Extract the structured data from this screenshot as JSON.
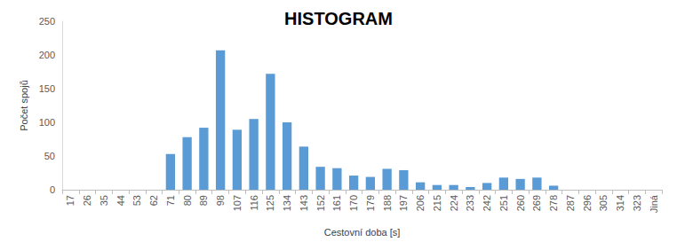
{
  "chart_data": {
    "type": "bar",
    "title": "HISTOGRAM",
    "x_label": "Cestovní doba [s]",
    "y_label": "Počet spojů",
    "categories": [
      "17",
      "26",
      "35",
      "44",
      "53",
      "62",
      "71",
      "80",
      "89",
      "98",
      "107",
      "116",
      "125",
      "134",
      "143",
      "152",
      "161",
      "170",
      "179",
      "188",
      "197",
      "206",
      "215",
      "224",
      "233",
      "242",
      "251",
      "260",
      "269",
      "278",
      "287",
      "296",
      "305",
      "314",
      "323",
      "Jiná"
    ],
    "values": [
      0,
      0,
      0,
      0,
      0,
      0,
      53,
      78,
      92,
      207,
      89,
      105,
      172,
      100,
      64,
      34,
      32,
      21,
      19,
      31,
      29,
      11,
      7,
      7,
      4,
      10,
      18,
      16,
      18,
      6,
      0,
      0,
      0,
      0,
      0,
      0
    ],
    "color": "#5b9bd5",
    "ylim": [
      0,
      250
    ],
    "yticks": [
      0,
      50,
      100,
      150,
      200,
      250
    ],
    "grid": false
  }
}
